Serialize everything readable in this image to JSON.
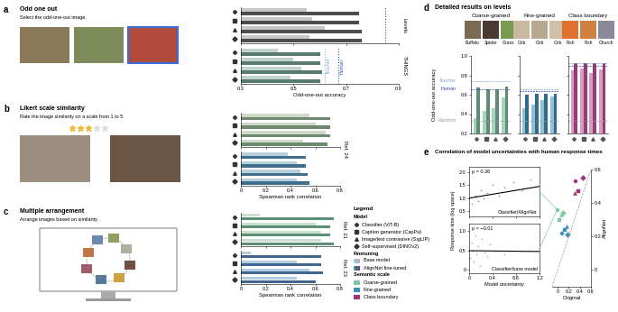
{
  "legend": {
    "title": "Legend",
    "model_title": "Model",
    "finetuning_title": "Finetuning",
    "semantic_title": "Semantic scale",
    "models": [
      {
        "name": "Classifier (ViT-B)",
        "marker": "plus"
      },
      {
        "name": "Caption generator (CapPa)",
        "marker": "square"
      },
      {
        "name": "Image/text contrastive (SigLIP)",
        "marker": "triangle"
      },
      {
        "name": "Self-supervised (DINOv2)",
        "marker": "diamond"
      }
    ],
    "finetuning": [
      {
        "name": "Base model",
        "colors": [
          "#a6d6b8",
          "#8fc0d6",
          "#d69cc2"
        ]
      },
      {
        "name": "AlignNet fine-tuned",
        "colors": [
          "#5e8c78",
          "#2f6b8c",
          "#9a3a77"
        ]
      }
    ],
    "semantic_scales": [
      {
        "name": "Coarse-grained",
        "color": "#7fc9a0"
      },
      {
        "name": "Fine-grained",
        "color": "#3d8fb8"
      },
      {
        "name": "Class boundary",
        "color": "#a0327a"
      }
    ]
  },
  "illustrations": [
    {
      "panel": "a",
      "title": "Odd one out",
      "instruction": "Select the odd-one-out image."
    },
    {
      "panel": "b",
      "title": "Likert scale similarity",
      "instruction": "Rate the image similarity on a scale from 1 to 5"
    },
    {
      "panel": "c",
      "title": "Multiple arrangement",
      "instruction": "Arrange images based on similarity"
    }
  ],
  "chart_data": [
    {
      "type": "bar",
      "panel": "a",
      "orientation": "horizontal",
      "x_label": "Odd-one-out accuracy",
      "xlim": [
        0.3,
        0.9
      ],
      "xticks": [
        0.3,
        0.5,
        0.7,
        0.9
      ],
      "tick_labels": "x",
      "categories": [
        "Classifier (ViT-B)",
        "Caption generator (CapPa)",
        "Image/text contrastive (SigLIP)",
        "Self-supervised (DINOv2)"
      ],
      "groups": [
        {
          "label": "Levels",
          "series": [
            {
              "name": "Base model",
              "color": "#c8c8c8",
              "values": [
                0.55,
                0.57,
                0.62,
                0.56
              ]
            },
            {
              "name": "AlignNet fine-tuned",
              "color": "#4d4d4d",
              "values": [
                0.75,
                0.75,
                0.76,
                0.76
              ]
            }
          ],
          "reference_lines": [
            {
              "name": null,
              "value": 0.85,
              "color": "#2b4fa0"
            }
          ]
        },
        {
          "label": "THINGS",
          "series": [
            {
              "name": "Base model",
              "color": "#c2d3cd",
              "values": [
                0.44,
                0.5,
                0.53,
                0.49
              ]
            },
            {
              "name": "AlignNet fine-tuned",
              "color": "#587a70",
              "values": [
                0.6,
                0.6,
                0.61,
                0.6
              ]
            }
          ],
          "reference_lines": [
            {
              "name": "Teacher",
              "value": 0.62,
              "color": "#7fa9d6"
            },
            {
              "name": "Human",
              "value": 0.67,
              "color": "#2b4fa0"
            }
          ]
        }
      ]
    },
    {
      "type": "bar",
      "panel": "b",
      "orientation": "horizontal",
      "x_label": "Spearman rank correlation",
      "xlim": [
        0,
        0.8
      ],
      "xticks": [
        0,
        0.2,
        0.4,
        0.6,
        0.8
      ],
      "tick_labels": "x",
      "source": "Ref. 24",
      "categories": [
        "Classifier (ViT-B)",
        "Caption generator (CapPa)",
        "Image/text contrastive (SigLIP)",
        "Self-supervised (DINOv2)"
      ],
      "groups": [
        {
          "series": [
            {
              "name": "Base model",
              "color": "#cfdac9",
              "values": [
                0.55,
                0.6,
                0.68,
                0.5
              ]
            },
            {
              "name": "AlignNet fine-tuned",
              "color": "#6d8a6f",
              "values": [
                0.72,
                0.72,
                0.72,
                0.7
              ]
            }
          ]
        },
        {
          "series": [
            {
              "name": "Base model",
              "color": "#b8cfdc",
              "values": [
                0.38,
                0.45,
                0.48,
                0.45
              ]
            },
            {
              "name": "AlignNet fine-tuned",
              "color": "#3f6f8c",
              "values": [
                0.52,
                0.52,
                0.54,
                0.55
              ]
            }
          ]
        }
      ]
    },
    {
      "type": "bar",
      "panel": "c",
      "orientation": "horizontal",
      "x_label": "Spearman rank correlation",
      "xlim": [
        0,
        0.8
      ],
      "xticks": [
        0,
        0.2,
        0.4,
        0.6,
        0.8
      ],
      "tick_labels": "x",
      "categories": [
        "Classifier (ViT-B)",
        "Caption generator (CapPa)",
        "Image/text contrastive (SigLIP)",
        "Self-supervised (DINOv2)"
      ],
      "groups": [
        {
          "label": "Ref. 21",
          "series": [
            {
              "name": "Base model",
              "color": "#c9e0cf",
              "values": [
                0.15,
                0.6,
                0.65,
                0.65
              ]
            },
            {
              "name": "AlignNet fine-tuned",
              "color": "#5c8f74",
              "values": [
                0.75,
                0.72,
                0.72,
                0.75
              ]
            }
          ]
        },
        {
          "label": "Ref. 23",
          "series": [
            {
              "name": "Base model",
              "color": "#b4cde0",
              "values": [
                0.08,
                0.45,
                0.55,
                0.45
              ]
            },
            {
              "name": "AlignNet fine-tuned",
              "color": "#41678f",
              "values": [
                0.65,
                0.65,
                0.66,
                0.6
              ]
            }
          ]
        }
      ]
    },
    {
      "type": "bar",
      "panel": "d",
      "title": "Detailed results on levels",
      "y_label": "Odd-one-out accuracy",
      "ylim": [
        0.2,
        1.0
      ],
      "yticks": [
        0.2,
        0.4,
        0.6,
        0.8,
        1.0
      ],
      "tick_labels": "y",
      "categories": [
        "Classifier (ViT-B)",
        "Caption generator (CapPa)",
        "Image/text contrastive (SigLIP)",
        "Self-supervised (DINOv2)"
      ],
      "subplots": [
        {
          "title": "Coarse-grained",
          "images": [
            "Buffalo",
            "Spider",
            "Grass"
          ],
          "series": [
            {
              "name": "Base model",
              "color": "#a6d6b8",
              "values": [
                0.36,
                0.43,
                0.46,
                0.57
              ]
            },
            {
              "name": "AlignNet fine-tuned",
              "color": "#5e8c78",
              "values": [
                0.67,
                0.66,
                0.66,
                0.68
              ]
            }
          ],
          "reference_lines": [
            {
              "name": "Teacher",
              "value": 0.74,
              "color": "#7fa9d6"
            },
            {
              "name": "Human",
              "value": 0.66,
              "color": "#2b4fa0"
            },
            {
              "name": "Random",
              "value": 0.333,
              "color": "#9a9a9a"
            }
          ]
        },
        {
          "title": "Fine-grained",
          "images": [
            "Crib",
            "Crib",
            "Crib"
          ],
          "series": [
            {
              "name": "Base model",
              "color": "#8fc0d6",
              "values": [
                0.46,
                0.5,
                0.54,
                0.58
              ]
            },
            {
              "name": "AlignNet fine-tuned",
              "color": "#2f6b8c",
              "values": [
                0.6,
                0.61,
                0.61,
                0.61
              ]
            }
          ],
          "reference_lines": [
            {
              "name": null,
              "value": 0.66,
              "color": "#7fa9d6"
            },
            {
              "name": null,
              "value": 0.64,
              "color": "#2b4fa0"
            },
            {
              "name": null,
              "value": 0.333,
              "color": "#9a9a9a"
            }
          ]
        },
        {
          "title": "Class boundary",
          "images": [
            "Fish",
            "Fish",
            "Church"
          ],
          "series": [
            {
              "name": "Base model",
              "color": "#d69cc2",
              "values": [
                0.85,
                0.87,
                0.82,
                0.86
              ]
            },
            {
              "name": "AlignNet fine-tuned",
              "color": "#9a3a77",
              "values": [
                0.93,
                0.93,
                0.93,
                0.93
              ]
            }
          ],
          "reference_lines": [
            {
              "name": null,
              "value": 0.93,
              "color": "#7fa9d6"
            },
            {
              "name": null,
              "value": 0.9,
              "color": "#2b4fa0"
            },
            {
              "name": null,
              "value": 0.333,
              "color": "#9a9a9a"
            }
          ]
        }
      ]
    },
    {
      "type": "scatter",
      "panel": "e",
      "title": "Correlation of model uncertainties with human response times",
      "y_label": "Response time (log space)",
      "x_label": "Model uncertainty",
      "insets": [
        {
          "label": "Classifier/AlignNet",
          "annotation": "ρ = 0.36",
          "color": "#9a9a9a",
          "x": [
            0.05,
            0.1,
            0.15,
            0.2,
            0.25,
            0.3,
            0.4,
            0.5,
            0.6,
            0.75,
            0.9,
            1.05
          ],
          "y": [
            0.8,
            1.1,
            0.9,
            1.3,
            1.0,
            1.2,
            1.5,
            1.1,
            1.4,
            1.6,
            1.3,
            1.7
          ],
          "fit": {
            "x": [
              0,
              1.2
            ],
            "y": [
              1.0,
              1.45
            ]
          },
          "xlim": [
            0,
            1.2
          ],
          "xticks": [
            0,
            0.4,
            0.8,
            1.2
          ],
          "ylim": [
            0.3,
            2.2
          ],
          "yticks": [
            0.5,
            1.0,
            1.5,
            2.0
          ],
          "tick_labels": "y"
        },
        {
          "label": "Classifier/base model",
          "annotation": "ρ = −0.01",
          "color": "#7fc9a0",
          "x": [
            0.02,
            0.04,
            0.06,
            0.08,
            0.1,
            0.12,
            0.15,
            0.18,
            0.22,
            0.26,
            0.3,
            0.35,
            0.45,
            0.6
          ],
          "y": [
            0.3,
            0.7,
            0.5,
            0.2,
            0.9,
            0.4,
            0.6,
            0.1,
            0.8,
            0.45,
            0.35,
            0.65,
            0.5,
            0.4
          ],
          "fit": {
            "x": [
              0,
              1.2
            ],
            "y": [
              0.49,
              0.47
            ]
          },
          "xlim": [
            0,
            1.2
          ],
          "xticks": [
            0,
            0.4,
            0.8,
            1.2
          ],
          "ylim": [
            -0.1,
            1.2
          ],
          "yticks": [
            0,
            0.5,
            1.0
          ],
          "tick_labels": true
        }
      ]
    },
    {
      "type": "scatter",
      "panel": "e",
      "x_label": "Original",
      "y_label": "AlignNet",
      "xlim": [
        -0.1,
        0.6
      ],
      "xticks": [
        0,
        0.2,
        0.4,
        0.6
      ],
      "ylim": [
        -0.1,
        0.6
      ],
      "yticks": [
        0,
        0.2,
        0.4,
        0.6
      ],
      "series": [
        {
          "name": "Coarse-grained",
          "color": "#7fc9a0",
          "x": [
            -0.01,
            0.03,
            0.06,
            0.1
          ],
          "y": [
            0.36,
            0.3,
            0.33,
            0.34
          ]
        },
        {
          "name": "Fine-grained",
          "color": "#3d8fb8",
          "x": [
            0.08,
            0.12,
            0.16,
            0.18
          ],
          "y": [
            0.22,
            0.24,
            0.26,
            0.21
          ]
        },
        {
          "name": "Class boundary",
          "color": "#a0327a",
          "x": [
            0.33,
            0.38,
            0.3,
            0.45
          ],
          "y": [
            0.53,
            0.47,
            0.46,
            0.55
          ]
        }
      ]
    }
  ]
}
